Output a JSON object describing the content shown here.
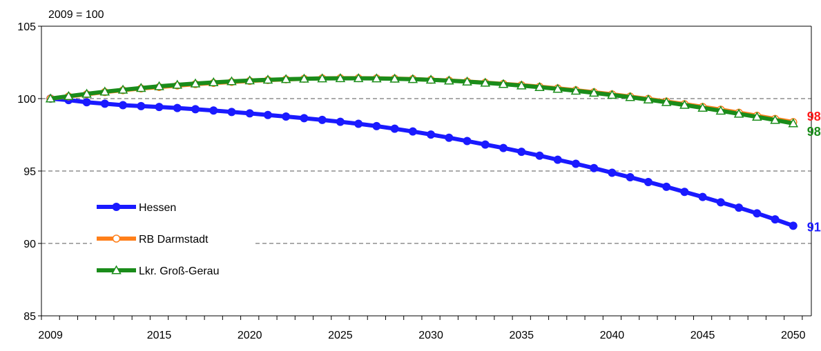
{
  "chart_data": {
    "type": "line",
    "unit_label": "2009 = 100",
    "title": "",
    "xlabel": "",
    "ylabel": "",
    "xlim": [
      2009,
      2050
    ],
    "ylim": [
      85,
      105
    ],
    "x_ticks": [
      2009,
      2015,
      2020,
      2025,
      2030,
      2035,
      2040,
      2045,
      2050
    ],
    "x_tick_labels": [
      "2009",
      "2015",
      "2020",
      "2025",
      "2030",
      "2035",
      "2040",
      "2045",
      "2050"
    ],
    "y_ticks": [
      85,
      90,
      95,
      100,
      105
    ],
    "y_tick_labels": [
      "85",
      "90",
      "95",
      "100",
      "105"
    ],
    "grid": "dashed horizontal at 90, 95, 100",
    "legend_position": "left-center",
    "x": [
      2009,
      2010,
      2011,
      2012,
      2013,
      2014,
      2015,
      2016,
      2017,
      2018,
      2019,
      2020,
      2021,
      2022,
      2023,
      2024,
      2025,
      2026,
      2027,
      2028,
      2029,
      2030,
      2031,
      2032,
      2033,
      2034,
      2035,
      2036,
      2037,
      2038,
      2039,
      2040,
      2041,
      2042,
      2043,
      2044,
      2045,
      2046,
      2047,
      2048,
      2049,
      2050
    ],
    "series": [
      {
        "name": "Hessen",
        "color": "#1a1aff",
        "marker": "filled-circle",
        "end_label": "91",
        "end_label_color": "#1a1aff",
        "values": [
          100,
          99.9,
          99.75,
          99.65,
          99.55,
          99.48,
          99.42,
          99.35,
          99.27,
          99.18,
          99.08,
          98.98,
          98.87,
          98.76,
          98.65,
          98.53,
          98.4,
          98.26,
          98.1,
          97.92,
          97.73,
          97.52,
          97.3,
          97.07,
          96.83,
          96.59,
          96.33,
          96.06,
          95.78,
          95.5,
          95.2,
          94.88,
          94.57,
          94.24,
          93.91,
          93.56,
          93.21,
          92.84,
          92.47,
          92.08,
          91.66,
          91.22
        ]
      },
      {
        "name": "RB Darmstadt",
        "color": "#ff7f1a",
        "marker": "open-circle",
        "end_label": "98",
        "end_label_color": "#ff1a1a",
        "values": [
          100,
          100.15,
          100.3,
          100.45,
          100.58,
          100.7,
          100.8,
          100.9,
          101,
          101.08,
          101.15,
          101.22,
          101.28,
          101.33,
          101.37,
          101.4,
          101.41,
          101.41,
          101.4,
          101.38,
          101.35,
          101.3,
          101.25,
          101.18,
          101.1,
          101.02,
          100.93,
          100.82,
          100.71,
          100.58,
          100.44,
          100.3,
          100.14,
          99.98,
          99.8,
          99.62,
          99.43,
          99.24,
          99.03,
          98.82,
          98.6,
          98.38
        ]
      },
      {
        "name": "Lkr. Groß-Gerau",
        "color": "#1a8c1a",
        "marker": "open-triangle",
        "end_label": "98",
        "end_label_color": "#1a8c1a",
        "values": [
          100,
          100.17,
          100.33,
          100.48,
          100.61,
          100.73,
          100.85,
          100.95,
          101.04,
          101.12,
          101.19,
          101.25,
          101.3,
          101.34,
          101.37,
          101.39,
          101.4,
          101.4,
          101.39,
          101.37,
          101.34,
          101.3,
          101.24,
          101.17,
          101.09,
          101,
          100.9,
          100.79,
          100.67,
          100.54,
          100.4,
          100.25,
          100.1,
          99.93,
          99.75,
          99.56,
          99.36,
          99.16,
          98.95,
          98.74,
          98.52,
          98.29
        ]
      }
    ]
  }
}
